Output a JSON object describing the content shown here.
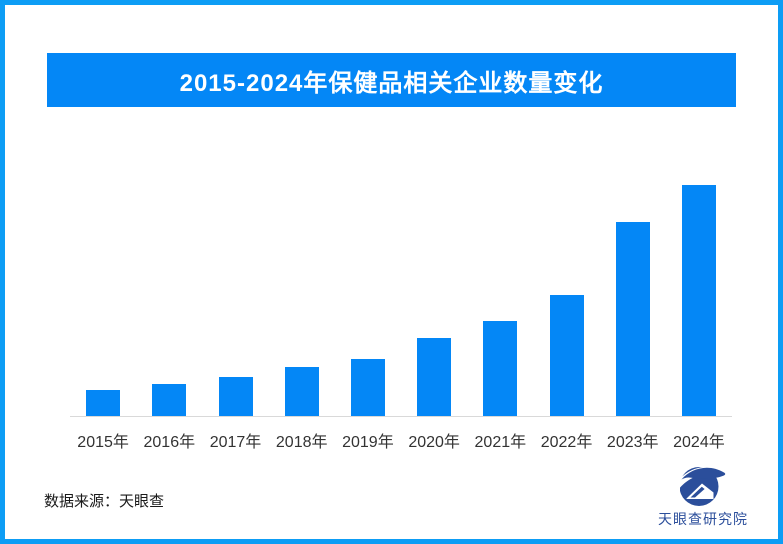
{
  "page": {
    "background": "#ffffff",
    "border_color": "#0d9df5"
  },
  "banner": {
    "title": "2015-2024年保健品相关企业数量变化",
    "background": "#0487f6",
    "text_color": "#ffffff"
  },
  "chart_data": {
    "type": "bar",
    "title": "2015-2024年保健品相关企业数量变化",
    "categories": [
      "2015年",
      "2016年",
      "2017年",
      "2018年",
      "2019年",
      "2020年",
      "2021年",
      "2022年",
      "2023年",
      "2024年"
    ],
    "values": [
      11.3,
      13.9,
      16.9,
      21.2,
      24.7,
      33.8,
      41.1,
      52.4,
      84,
      100
    ],
    "values_note": "相对值：图中未标注数值轴，按柱高估算（2024年=100）",
    "bar_color": "#0487f6",
    "axis_line_color": "#d9d9d9",
    "tick_label_color": "#333333",
    "xlabel": "",
    "ylabel": "",
    "ylim": [
      0,
      105
    ],
    "grid": false,
    "legend": false
  },
  "footer": {
    "source_label": "数据来源：天眼查"
  },
  "brand": {
    "name": "天眼查研究院",
    "logo_color": "#2b4e9b",
    "logo_icon": "tianyancha-eye-swoosh-icon"
  }
}
